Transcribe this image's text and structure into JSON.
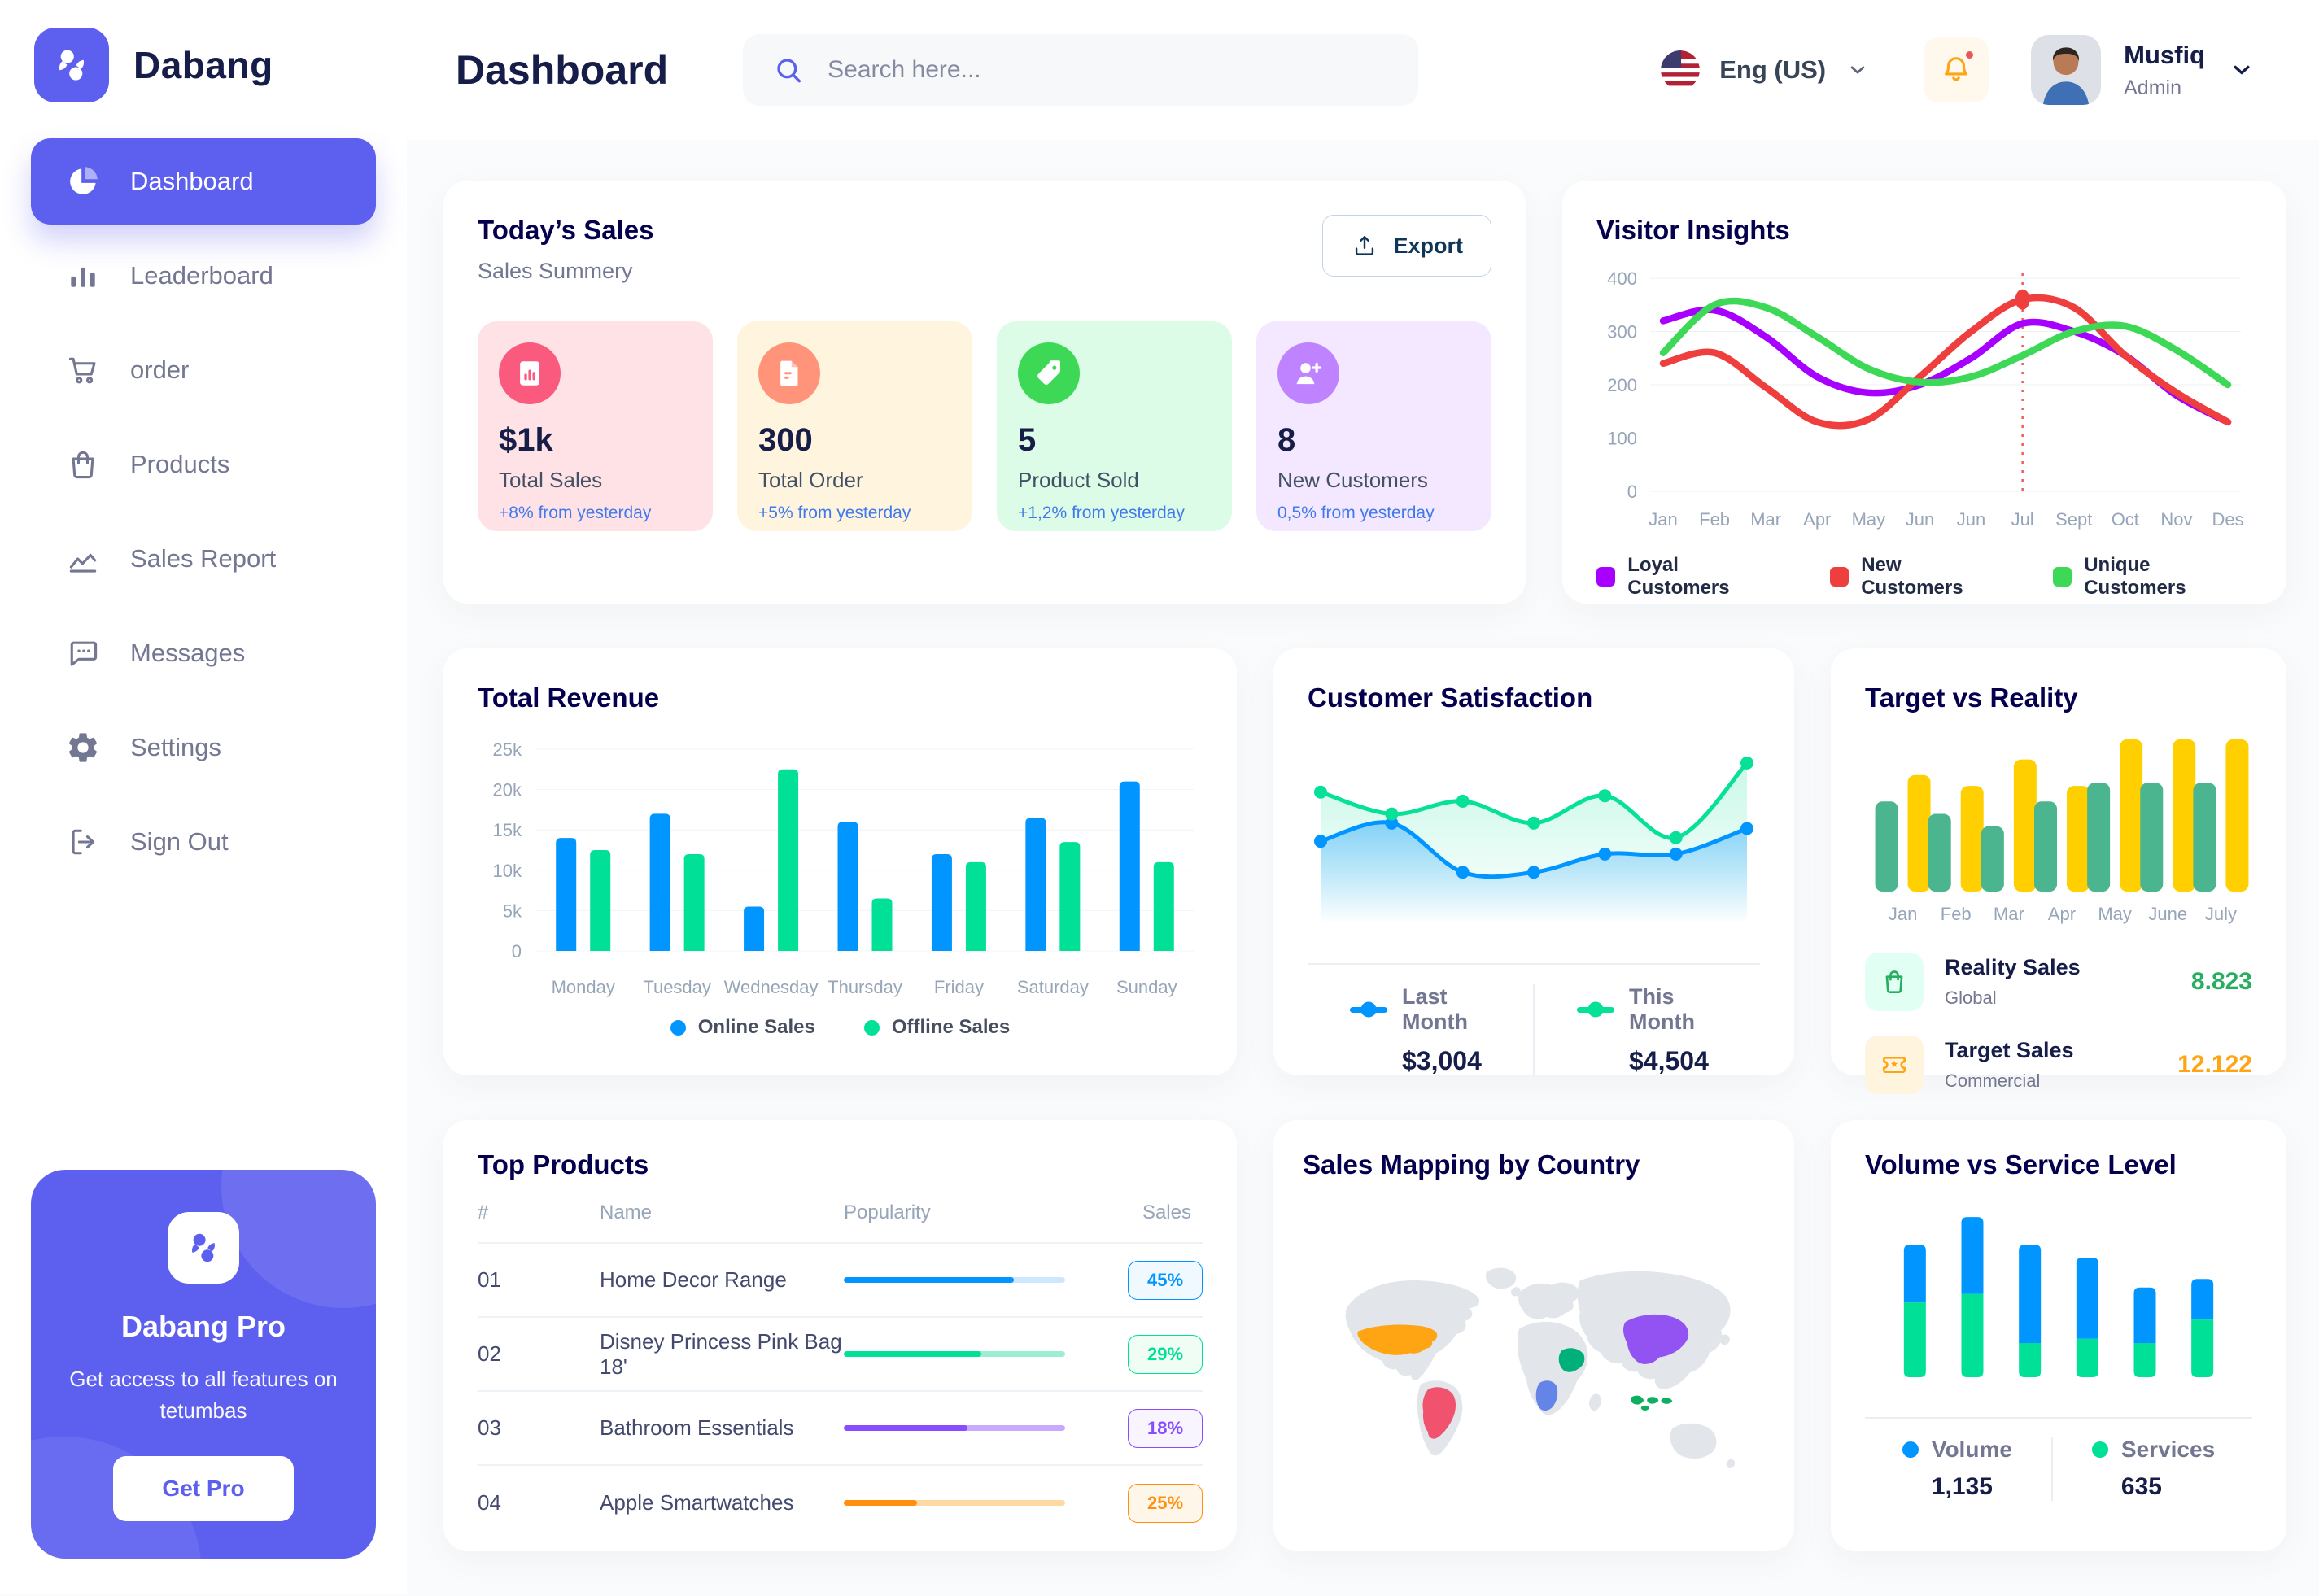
{
  "brand": {
    "name": "Dabang"
  },
  "sidebar": {
    "items": [
      {
        "label": "Dashboard",
        "icon": "pie-chart-icon",
        "active": true
      },
      {
        "label": "Leaderboard",
        "icon": "bar-chart-icon",
        "active": false
      },
      {
        "label": "order",
        "icon": "cart-icon",
        "active": false
      },
      {
        "label": "Products",
        "icon": "bag-icon",
        "active": false
      },
      {
        "label": "Sales Report",
        "icon": "line-chart-icon",
        "active": false
      },
      {
        "label": "Messages",
        "icon": "message-icon",
        "active": false
      },
      {
        "label": "Settings",
        "icon": "gear-icon",
        "active": false
      },
      {
        "label": "Sign Out",
        "icon": "sign-out-icon",
        "active": false
      }
    ],
    "pro_card": {
      "title": "Dabang Pro",
      "text": "Get access to all features on tetumbas",
      "button": "Get Pro"
    }
  },
  "header": {
    "title": "Dashboard",
    "search_placeholder": "Search here...",
    "language": "Eng (US)",
    "user_name": "Musfiq",
    "user_role": "Admin"
  },
  "today_sales": {
    "title": "Today’s Sales",
    "subtitle": "Sales Summery",
    "export_label": "Export",
    "delta_color": "#4079ED",
    "cards": [
      {
        "value": "$1k",
        "label": "Total Sales",
        "delta": "+8% from yesterday",
        "bg": "#FFE2E5",
        "icon_bg": "#FA5A7D",
        "icon": "bar-chart-card-icon"
      },
      {
        "value": "300",
        "label": "Total Order",
        "delta": "+5% from yesterday",
        "bg": "#FFF4DE",
        "icon_bg": "#FF947A",
        "icon": "receipt-icon"
      },
      {
        "value": "5",
        "label": "Product Sold",
        "delta": "+1,2% from yesterday",
        "bg": "#DCFCE7",
        "icon_bg": "#3CD856",
        "icon": "tag-icon"
      },
      {
        "value": "8",
        "label": "New Customers",
        "delta": "0,5% from yesterday",
        "bg": "#F3E8FF",
        "icon_bg": "#BF83FF",
        "icon": "user-plus-icon"
      }
    ]
  },
  "top_products": {
    "title": "Top Products",
    "headers": [
      "#",
      "Name",
      "Popularity",
      "Sales"
    ],
    "rows": [
      {
        "num": "01",
        "name": "Home Decor Range",
        "popularity": 77,
        "sales": "45%",
        "color": "#0095FF",
        "track": "#CDE7FF",
        "badge_bg": "#F0F9FF"
      },
      {
        "num": "02",
        "name": "Disney Princess Pink Bag 18'",
        "popularity": 62,
        "sales": "29%",
        "color": "#00E096",
        "track": "#9BEFD0",
        "badge_bg": "#F0FDF4"
      },
      {
        "num": "03",
        "name": "Bathroom Essentials",
        "popularity": 56,
        "sales": "18%",
        "color": "#884DFF",
        "track": "#C9A9FF",
        "badge_bg": "#F9F5FF"
      },
      {
        "num": "04",
        "name": "Apple Smartwatches",
        "popularity": 33,
        "sales": "25%",
        "color": "#FF8F0D",
        "track": "#FFD9A3",
        "badge_bg": "#FFF6EA"
      }
    ]
  },
  "sales_map": {
    "title": "Sales Mapping by Country",
    "countries": [
      {
        "key": "usa",
        "name": "United States",
        "color": "#FFA412"
      },
      {
        "key": "brazil",
        "name": "Brazil",
        "color": "#F1536E"
      },
      {
        "key": "saudi-arabia",
        "name": "Saudi Arabia",
        "color": "#00B07A"
      },
      {
        "key": "dr-congo",
        "name": "DR Congo",
        "color": "#6584E8"
      },
      {
        "key": "china",
        "name": "China",
        "color": "#9352F2"
      },
      {
        "key": "indonesia",
        "name": "Indonesia",
        "color": "#0FAF62"
      }
    ]
  },
  "chart_data": [
    {
      "id": "visitor_insights",
      "type": "line",
      "title": "Visitor Insights",
      "x_labels": [
        "Jan",
        "Feb",
        "Mar",
        "Apr",
        "May",
        "Jun",
        "Jun",
        "Jul",
        "Sept",
        "Oct",
        "Nov",
        "Des"
      ],
      "ylim": [
        0,
        400
      ],
      "yticks": [
        0,
        100,
        200,
        300,
        400
      ],
      "grid": true,
      "legend_position": "bottom",
      "series": [
        {
          "name": "Loyal Customers",
          "color": "#A700FF",
          "values": [
            320,
            340,
            290,
            215,
            185,
            200,
            250,
            315,
            300,
            255,
            180,
            130
          ]
        },
        {
          "name": "New Customers",
          "color": "#EF3E3E",
          "values": [
            240,
            260,
            195,
            130,
            135,
            215,
            300,
            360,
            345,
            255,
            185,
            130
          ]
        },
        {
          "name": "Unique Customers",
          "color": "#3CD856",
          "values": [
            260,
            350,
            345,
            290,
            230,
            205,
            215,
            255,
            300,
            310,
            265,
            200
          ]
        }
      ],
      "marker": {
        "x_index": 7,
        "series_index": 1,
        "value": 360
      }
    },
    {
      "id": "total_revenue",
      "type": "bar",
      "title": "Total Revenue",
      "categories": [
        "Monday",
        "Tuesday",
        "Wednesday",
        "Thursday",
        "Friday",
        "Saturday",
        "Sunday"
      ],
      "ylim": [
        0,
        25000
      ],
      "ytick_labels": [
        "0",
        "5k",
        "10k",
        "15k",
        "20k",
        "25k"
      ],
      "grid": true,
      "legend_position": "bottom",
      "series": [
        {
          "name": "Online Sales",
          "color": "#0095FF",
          "values": [
            14000,
            17000,
            5500,
            16000,
            12000,
            16500,
            21000
          ]
        },
        {
          "name": "Offline Sales",
          "color": "#00E096",
          "values": [
            12500,
            12000,
            22500,
            6500,
            11000,
            13500,
            11000
          ]
        }
      ]
    },
    {
      "id": "customer_satisfaction",
      "type": "area",
      "title": "Customer Satisfaction",
      "ylim": [
        0,
        100
      ],
      "legend_position": "bottom",
      "series": [
        {
          "name": "Last Month",
          "total": "$3,004",
          "color": "#0095FF",
          "values": [
            45,
            55,
            28,
            28,
            38,
            38,
            52
          ]
        },
        {
          "name": "This Month",
          "total": "$4,504",
          "color": "#07E098",
          "values": [
            72,
            60,
            67,
            55,
            70,
            47,
            88
          ]
        }
      ]
    },
    {
      "id": "target_vs_reality",
      "type": "bar",
      "title": "Target vs Reality",
      "categories": [
        "Jan",
        "Feb",
        "Mar",
        "Apr",
        "May",
        "June",
        "July"
      ],
      "ylim": [
        0,
        100
      ],
      "series": [
        {
          "name": "Reality Sales",
          "tag": "Global",
          "value": "8.823",
          "value_color": "#27AE60",
          "color": "#4AB58E",
          "icon": "shopping-bag-icon",
          "icon_bg": "#E2FFF3",
          "icon_color": "#27AE60",
          "values": [
            58,
            50,
            42,
            58,
            70,
            70,
            70
          ]
        },
        {
          "name": "Target Sales",
          "tag": "Commercial",
          "value": "12.122",
          "value_color": "#FFA412",
          "color": "#FFCF00",
          "icon": "ticket-icon",
          "icon_bg": "#FFF4DE",
          "icon_color": "#FFA412",
          "values": [
            75,
            68,
            85,
            68,
            98,
            98,
            98
          ]
        }
      ]
    },
    {
      "id": "volume_vs_service",
      "type": "stacked-bar",
      "title": "Volume vs Service Level",
      "ylim": [
        0,
        80
      ],
      "legend_position": "bottom",
      "series": [
        {
          "name": "Volume",
          "total": "1,135",
          "color": "#0095FF",
          "values": [
            27,
            36,
            46,
            38,
            26,
            19
          ]
        },
        {
          "name": "Services",
          "total": "635",
          "color": "#00E096",
          "values": [
            35,
            39,
            16,
            18,
            16,
            27
          ]
        }
      ]
    }
  ]
}
